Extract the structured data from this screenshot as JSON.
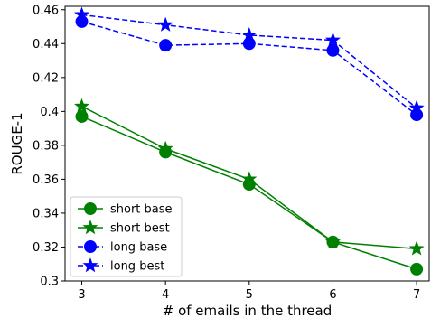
{
  "chart_data": {
    "type": "line",
    "xlabel": "# of emails in the thread",
    "ylabel": "ROUGE-1",
    "xlim": [
      2.8,
      7.15
    ],
    "ylim": [
      0.3,
      0.462
    ],
    "x_ticks": [
      3,
      4,
      5,
      6,
      7
    ],
    "y_ticks": [
      0.3,
      0.32,
      0.34,
      0.36,
      0.38,
      0.4,
      0.42,
      0.44,
      0.46
    ],
    "y_tick_labels": [
      "0.3",
      "0.32",
      "0.34",
      "0.36",
      "0.38",
      "0.4",
      "0.42",
      "0.44",
      "0.46"
    ],
    "grid": false,
    "legend_position": "lower-left",
    "x": [
      3,
      4,
      5,
      6,
      7
    ],
    "series": [
      {
        "name": "short base",
        "values": [
          0.397,
          0.376,
          0.357,
          0.323,
          0.307
        ],
        "color": "#008000",
        "marker": "circle",
        "dashed": false
      },
      {
        "name": "short best",
        "values": [
          0.403,
          0.378,
          0.36,
          0.323,
          0.319
        ],
        "color": "#008000",
        "marker": "star",
        "dashed": false
      },
      {
        "name": "long base",
        "values": [
          0.453,
          0.439,
          0.44,
          0.436,
          0.398
        ],
        "color": "#0000ff",
        "marker": "circle",
        "dashed": true
      },
      {
        "name": "long best",
        "values": [
          0.457,
          0.451,
          0.445,
          0.442,
          0.402
        ],
        "color": "#0000ff",
        "marker": "star",
        "dashed": true
      }
    ]
  }
}
